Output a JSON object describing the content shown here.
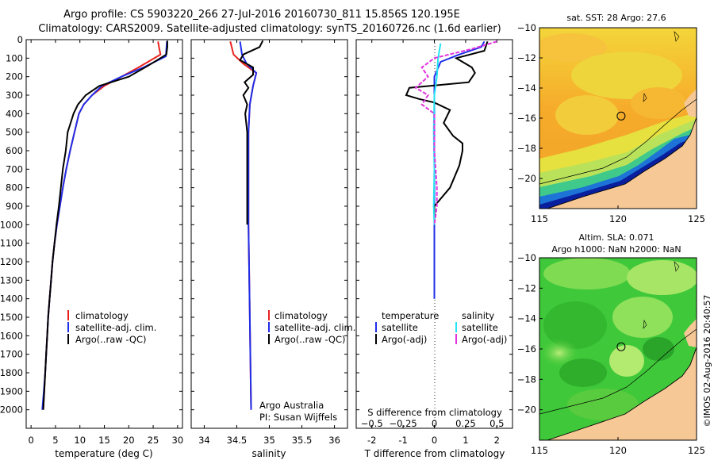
{
  "titles": {
    "line1": "Argo profile: CS 5903220_266 27-Jul-2016 20160730_811 15.856S 120.195E",
    "line2": "Climatology: CARS2009. Satellite-adjusted climatology: synTS_20160726.nc (1.6d earlier)"
  },
  "colors": {
    "climatology": "#e8231f",
    "satellite": "#1f2ee8",
    "argo": "#000000",
    "sal_satellite": "#25e3f2",
    "sal_argo": "#e233e0",
    "land": "#f5c896"
  },
  "chart_data": [
    {
      "type": "line",
      "name": "temperature-profile",
      "xlabel": "temperature (deg C)",
      "xlim": [
        -1,
        31
      ],
      "xticks": [
        0,
        5,
        10,
        15,
        20,
        25,
        30
      ],
      "ylim": [
        2100,
        0
      ],
      "yticks": [
        0,
        100,
        200,
        300,
        400,
        500,
        600,
        700,
        800,
        900,
        1000,
        1100,
        1200,
        1300,
        1400,
        1500,
        1600,
        1700,
        1800,
        1900,
        2000
      ],
      "legend": [
        "climatology",
        "satellite-adj. clim.",
        "Argo(..raw -QC)"
      ],
      "series": [
        {
          "name": "climatology",
          "points": [
            [
              26,
              10
            ],
            [
              26.2,
              40
            ],
            [
              26.5,
              80
            ],
            [
              22,
              150
            ],
            [
              18.5,
              200
            ],
            [
              15,
              250
            ],
            [
              12.5,
              300
            ],
            [
              10.8,
              350
            ],
            [
              9.8,
              400
            ],
            [
              8.9,
              500
            ],
            [
              8,
              600
            ],
            [
              7.2,
              700
            ],
            [
              6.5,
              800
            ],
            [
              5.9,
              900
            ],
            [
              5.3,
              1000
            ],
            [
              4.8,
              1100
            ],
            [
              4.4,
              1200
            ],
            [
              4.1,
              1300
            ],
            [
              3.8,
              1400
            ],
            [
              3.5,
              1500
            ],
            [
              3.3,
              1600
            ],
            [
              3.1,
              1700
            ],
            [
              2.9,
              1800
            ],
            [
              2.7,
              1900
            ],
            [
              2.5,
              2000
            ]
          ]
        },
        {
          "name": "satellite",
          "points": [
            [
              27.8,
              10
            ],
            [
              27.7,
              50
            ],
            [
              27.6,
              90
            ],
            [
              23,
              150
            ],
            [
              18.5,
              200
            ],
            [
              14.5,
              250
            ],
            [
              12.5,
              300
            ],
            [
              10.8,
              350
            ],
            [
              9.8,
              400
            ],
            [
              8.9,
              500
            ],
            [
              8,
              600
            ],
            [
              7.2,
              700
            ],
            [
              6.5,
              800
            ],
            [
              5.9,
              900
            ],
            [
              5.3,
              1000
            ],
            [
              4.8,
              1100
            ],
            [
              4.4,
              1200
            ],
            [
              4.1,
              1300
            ],
            [
              3.8,
              1400
            ],
            [
              3.5,
              1500
            ],
            [
              3.3,
              1600
            ],
            [
              3.1,
              1700
            ],
            [
              2.9,
              1800
            ],
            [
              2.6,
              1900
            ],
            [
              2.3,
              2000
            ]
          ]
        },
        {
          "name": "argo",
          "points": [
            [
              27.9,
              5
            ],
            [
              27.9,
              40
            ],
            [
              27.7,
              80
            ],
            [
              24,
              140
            ],
            [
              20,
              200
            ],
            [
              14,
              250
            ],
            [
              11.2,
              300
            ],
            [
              9.6,
              350
            ],
            [
              8.7,
              400
            ],
            [
              8.1,
              450
            ],
            [
              7.5,
              500
            ],
            [
              7.1,
              600
            ],
            [
              6.5,
              700
            ],
            [
              6.1,
              800
            ],
            [
              5.7,
              900
            ],
            [
              5.2,
              1000
            ],
            [
              4.8,
              1100
            ],
            [
              4.4,
              1200
            ],
            [
              4.1,
              1300
            ],
            [
              3.8,
              1400
            ],
            [
              3.5,
              1500
            ],
            [
              3.3,
              1600
            ],
            [
              3.1,
              1700
            ],
            [
              2.9,
              1800
            ],
            [
              2.7,
              1900
            ],
            [
              2.5,
              2000
            ]
          ]
        }
      ]
    },
    {
      "type": "line",
      "name": "salinity-profile",
      "xlabel": "salinity",
      "xlim": [
        33.8,
        36.2
      ],
      "xticks": [
        34,
        34.5,
        35,
        35.5,
        36
      ],
      "ylim": [
        2100,
        0
      ],
      "legend": [
        "climatology",
        "satellite-adj. clim.",
        "Argo(..raw -QC)"
      ],
      "annotation": [
        "Argo Australia",
        "PI: Susan Wijffels"
      ],
      "series": [
        {
          "name": "climatology",
          "points": [
            [
              34.4,
              10
            ],
            [
              34.45,
              80
            ],
            [
              34.6,
              130
            ],
            [
              34.8,
              180
            ],
            [
              34.75,
              250
            ],
            [
              34.7,
              350
            ],
            [
              34.68,
              500
            ],
            [
              34.68,
              700
            ],
            [
              34.68,
              1000
            ],
            [
              34.7,
              1500
            ],
            [
              34.72,
              2000
            ]
          ]
        },
        {
          "name": "satellite",
          "points": [
            [
              34.55,
              10
            ],
            [
              34.58,
              80
            ],
            [
              34.65,
              130
            ],
            [
              34.8,
              180
            ],
            [
              34.75,
              250
            ],
            [
              34.7,
              350
            ],
            [
              34.68,
              500
            ],
            [
              34.68,
              700
            ],
            [
              34.68,
              1000
            ],
            [
              34.7,
              1500
            ],
            [
              34.72,
              2000
            ]
          ]
        },
        {
          "name": "argo",
          "points": [
            [
              34.9,
              5
            ],
            [
              34.85,
              40
            ],
            [
              34.6,
              80
            ],
            [
              34.55,
              110
            ],
            [
              34.75,
              150
            ],
            [
              34.75,
              190
            ],
            [
              34.62,
              230
            ],
            [
              34.68,
              260
            ],
            [
              34.6,
              300
            ],
            [
              34.66,
              350
            ],
            [
              34.63,
              400
            ],
            [
              34.66,
              500
            ],
            [
              34.66,
              600
            ],
            [
              34.66,
              700
            ],
            [
              34.66,
              800
            ],
            [
              34.66,
              900
            ],
            [
              34.66,
              1000
            ]
          ]
        }
      ]
    },
    {
      "type": "line",
      "name": "difference-profile",
      "xlabel": "T difference from climatology",
      "xlabel_top": "S difference from climatology",
      "xlim": [
        -2.5,
        2.5
      ],
      "xticks": [
        -2,
        -1,
        0,
        1,
        2
      ],
      "s_ticks": [
        -0.5,
        -0.25,
        0,
        0.25,
        0.5
      ],
      "s_tick_labels": [
        "−0.5",
        "−0.25",
        "0",
        "0.25",
        "0.5"
      ],
      "legend_temperature": [
        "temperature",
        "satellite",
        "Argo(-adj)"
      ],
      "legend_salinity": [
        "salinity",
        "satellite",
        "Argo(-adj)"
      ],
      "series": [
        {
          "name": "t-satellite",
          "points": [
            [
              1.6,
              10
            ],
            [
              1.5,
              40
            ],
            [
              0.8,
              80
            ],
            [
              0.2,
              120
            ],
            [
              0,
              200
            ],
            [
              0,
              300
            ],
            [
              0,
              500
            ],
            [
              0,
              700
            ],
            [
              0,
              1000
            ],
            [
              0,
              1400
            ]
          ]
        },
        {
          "name": "t-argo",
          "points": [
            [
              1.7,
              10
            ],
            [
              1.6,
              60
            ],
            [
              0.7,
              100
            ],
            [
              1.2,
              150
            ],
            [
              1.3,
              180
            ],
            [
              1.1,
              230
            ],
            [
              -0.8,
              260
            ],
            [
              -0.9,
              300
            ],
            [
              -0.5,
              320
            ],
            [
              0,
              340
            ],
            [
              0.5,
              380
            ],
            [
              0.3,
              450
            ],
            [
              0.6,
              520
            ],
            [
              0.9,
              560
            ],
            [
              0.9,
              600
            ],
            [
              0.8,
              680
            ],
            [
              0.5,
              800
            ],
            [
              0,
              900
            ],
            [
              0,
              1000
            ]
          ]
        },
        {
          "name": "s-satellite",
          "points": [
            [
              0.05,
              20
            ],
            [
              0.04,
              60
            ],
            [
              0.03,
              100
            ],
            [
              0.02,
              200
            ],
            [
              0.0,
              300
            ],
            [
              -0.005,
              500
            ],
            [
              0.0,
              700
            ],
            [
              -0.005,
              900
            ],
            [
              0.0,
              1000
            ]
          ]
        },
        {
          "name": "s-argo",
          "points": [
            [
              0.5,
              10
            ],
            [
              0.3,
              50
            ],
            [
              0.0,
              100
            ],
            [
              -0.1,
              150
            ],
            [
              -0.05,
              200
            ],
            [
              -0.15,
              260
            ],
            [
              -0.05,
              300
            ],
            [
              -0.1,
              350
            ],
            [
              0.0,
              400
            ],
            [
              0.0,
              600
            ],
            [
              0.02,
              800
            ],
            [
              0.02,
              900
            ],
            [
              0.0,
              1000
            ]
          ]
        }
      ]
    },
    {
      "type": "heatmap",
      "name": "sst-map",
      "title": "sat. SST: 28 Argo: 27.6",
      "xlim": [
        115,
        125
      ],
      "ylim": [
        -22,
        -10
      ],
      "xticks": [
        115,
        120,
        125
      ],
      "yticks": [
        -10,
        -12,
        -14,
        -16,
        -18,
        -20
      ],
      "ytick_labels": [
        "−10",
        "−12",
        "−14",
        "−16",
        "−18",
        "−20"
      ],
      "marker": [
        120.195,
        -15.856
      ]
    },
    {
      "type": "heatmap",
      "name": "sla-map",
      "title_line1": "Altim. SLA: 0.071",
      "title_line2": "Argo h1000: NaN h2000: NaN",
      "xlim": [
        115,
        125
      ],
      "ylim": [
        -22,
        -10
      ],
      "xticks": [
        115,
        120,
        125
      ],
      "yticks": [
        -10,
        -12,
        -14,
        -16,
        -18,
        -20
      ],
      "ytick_labels": [
        "−10",
        "−12",
        "−14",
        "−16",
        "−18",
        "−20"
      ],
      "marker": [
        120.195,
        -15.856
      ]
    }
  ],
  "footer": "©IMOS 02-Aug-2016 20:40:57"
}
